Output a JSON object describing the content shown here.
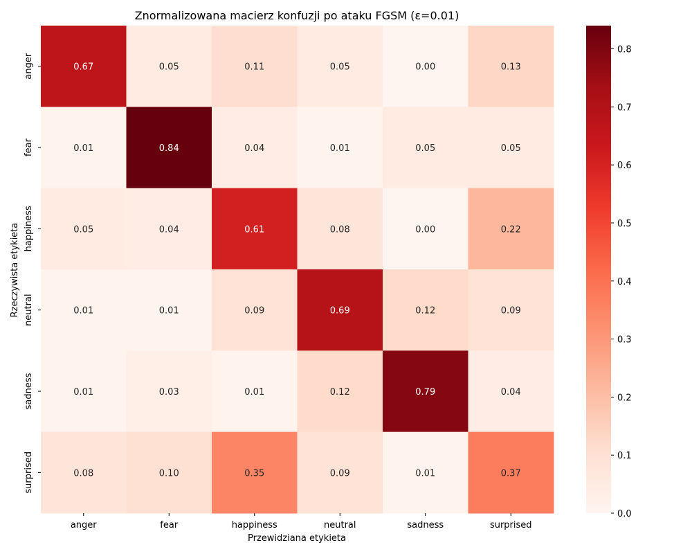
{
  "chart_data": {
    "type": "heatmap",
    "title": "Znormalizowana macierz konfuzji po ataku FGSM (ε=0.01)",
    "xlabel": "Przewidziana etykieta",
    "ylabel": "Rzeczywista etykieta",
    "x_categories": [
      "anger",
      "fear",
      "happiness",
      "neutral",
      "sadness",
      "surprised"
    ],
    "y_categories": [
      "anger",
      "fear",
      "happiness",
      "neutral",
      "sadness",
      "surprised"
    ],
    "values": [
      [
        0.67,
        0.05,
        0.11,
        0.05,
        0.0,
        0.13
      ],
      [
        0.01,
        0.84,
        0.04,
        0.01,
        0.05,
        0.05
      ],
      [
        0.05,
        0.04,
        0.61,
        0.08,
        0.0,
        0.22
      ],
      [
        0.01,
        0.01,
        0.09,
        0.69,
        0.12,
        0.09
      ],
      [
        0.01,
        0.03,
        0.01,
        0.12,
        0.79,
        0.04
      ],
      [
        0.08,
        0.1,
        0.35,
        0.09,
        0.01,
        0.37
      ]
    ],
    "value_format": "0.00",
    "colormap": "Reds",
    "colorbar": {
      "range": [
        0.0,
        0.84
      ],
      "ticks": [
        "0.0",
        "0.1",
        "0.2",
        "0.3",
        "0.4",
        "0.5",
        "0.6",
        "0.7",
        "0.8"
      ]
    },
    "grid": false,
    "legend": "colorbar-right"
  }
}
